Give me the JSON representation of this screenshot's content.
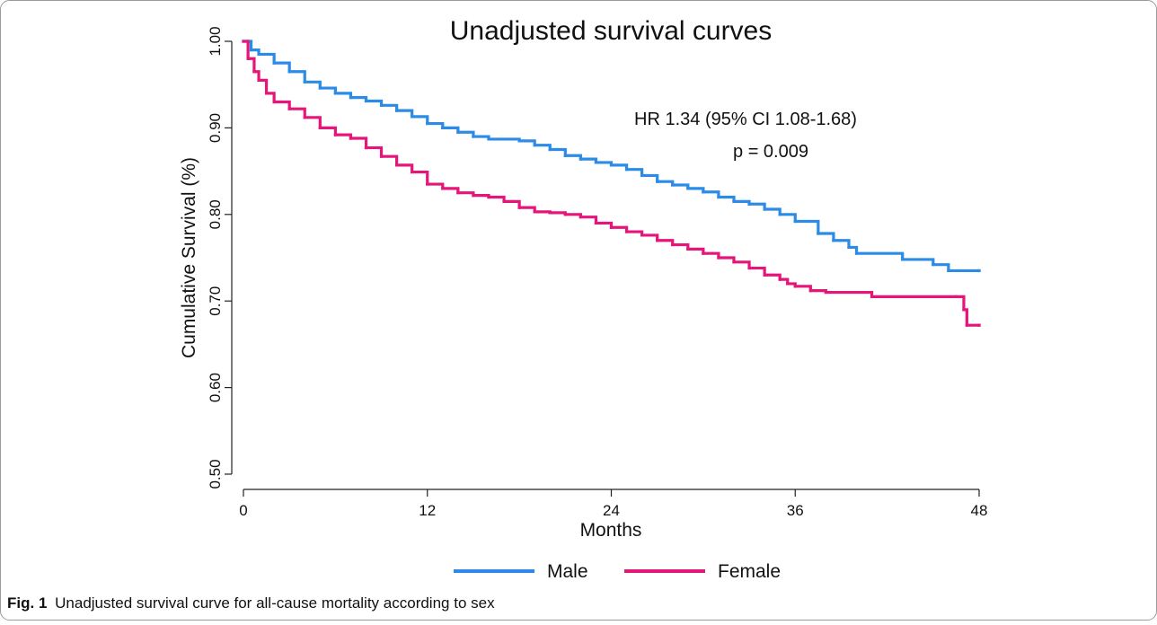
{
  "chart_data": {
    "type": "step",
    "title": "Unadjusted survival curves",
    "x_label": "Months",
    "y_label": "Cumulative Survival (%)",
    "annotations": [
      "HR 1.34 (95% CI 1.08-1.68)",
      "p = 0.009"
    ],
    "caption_label": "Fig. 1",
    "caption": "Unadjusted survival curve for all-cause mortality according to sex",
    "xlim": [
      0,
      48
    ],
    "xticks": [
      0,
      12,
      24,
      36,
      48
    ],
    "ylim": [
      0.5,
      1
    ],
    "yticks": [
      {
        "value": 0.5,
        "label": "0.50"
      },
      {
        "value": 0.6,
        "label": "0.60"
      },
      {
        "value": 0.7,
        "label": "0.70"
      },
      {
        "value": 0.8,
        "label": "0.80"
      },
      {
        "value": 0.9,
        "label": "0.90"
      },
      {
        "value": 1,
        "label": "1.00"
      }
    ],
    "legend": "bottom",
    "series": [
      {
        "name": "Male",
        "color": "#2b8be6",
        "x": [
          0,
          0.5,
          1,
          2,
          3,
          4,
          5,
          6,
          7,
          8,
          9,
          10,
          11,
          12,
          13,
          14,
          15,
          16,
          18,
          19,
          20,
          21,
          22,
          23,
          24,
          25,
          26,
          27,
          28,
          29,
          30,
          31,
          32,
          33,
          34,
          35,
          36,
          37.5,
          38.5,
          39.5,
          40,
          43,
          45,
          46,
          48
        ],
        "values": [
          1.0,
          0.99,
          0.985,
          0.975,
          0.965,
          0.953,
          0.946,
          0.94,
          0.935,
          0.931,
          0.926,
          0.92,
          0.913,
          0.905,
          0.9,
          0.895,
          0.89,
          0.887,
          0.885,
          0.88,
          0.875,
          0.868,
          0.864,
          0.86,
          0.857,
          0.852,
          0.845,
          0.838,
          0.834,
          0.83,
          0.826,
          0.82,
          0.815,
          0.812,
          0.806,
          0.8,
          0.792,
          0.778,
          0.77,
          0.762,
          0.755,
          0.748,
          0.742,
          0.735,
          0.735
        ]
      },
      {
        "name": "Female",
        "color": "#e5157a",
        "x": [
          0,
          0.3,
          0.7,
          1,
          1.5,
          2,
          3,
          4,
          5,
          6,
          7,
          8,
          9,
          10,
          11,
          12,
          13,
          14,
          15,
          16,
          17,
          18,
          19,
          20,
          21,
          22,
          23,
          24,
          25,
          26,
          27,
          28,
          29,
          30,
          31,
          32,
          33,
          34,
          35,
          35.5,
          36,
          37,
          38,
          41,
          46.5,
          47,
          47.2,
          48
        ],
        "values": [
          1.0,
          0.98,
          0.965,
          0.955,
          0.94,
          0.93,
          0.922,
          0.912,
          0.9,
          0.892,
          0.888,
          0.877,
          0.867,
          0.857,
          0.849,
          0.835,
          0.83,
          0.825,
          0.822,
          0.82,
          0.815,
          0.808,
          0.803,
          0.802,
          0.8,
          0.797,
          0.79,
          0.785,
          0.78,
          0.776,
          0.77,
          0.765,
          0.76,
          0.755,
          0.75,
          0.745,
          0.738,
          0.73,
          0.725,
          0.72,
          0.717,
          0.712,
          0.71,
          0.705,
          0.705,
          0.69,
          0.672,
          0.672
        ]
      }
    ]
  }
}
